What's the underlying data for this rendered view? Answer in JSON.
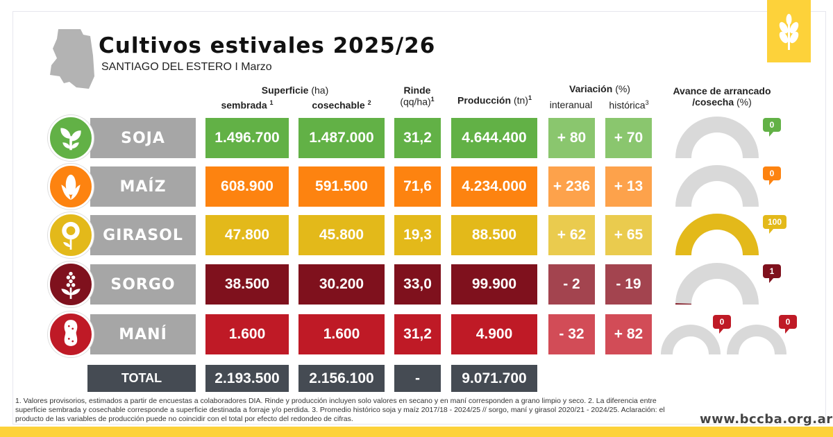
{
  "header": {
    "title": "Cultivos estivales 2025/26",
    "subtitle": "SANTIAGO DEL ESTERO I Marzo"
  },
  "columns": {
    "superficie": "Superficie",
    "superficie_unit": "(ha)",
    "sembrada": "sembrada",
    "sembrada_sup": "1",
    "cosechable": "cosechable",
    "cosechable_sup": "2",
    "rinde": "Rinde",
    "rinde_unit": "(qq/ha)",
    "rinde_sup": "1",
    "produccion": "Producción",
    "produccion_unit": "(tn)",
    "produccion_sup": "1",
    "variacion": "Variación",
    "variacion_unit": "(%)",
    "interanual": "interanual",
    "historica": "histórica",
    "historica_sup": "3",
    "avance": "Avance de arrancado",
    "avance2": "/cosecha",
    "avance_unit": "(%)"
  },
  "crops": [
    {
      "name": "SOJA",
      "icon": "sprout-icon",
      "sembrada": "1.496.700",
      "cosechable": "1.487.000",
      "rinde": "31,2",
      "produccion": "4.644.400",
      "interanual": "+ 80",
      "historica": "+ 70",
      "avance": [
        0
      ],
      "avance_labels": [
        "0"
      ],
      "color": "#62b146",
      "light": "#8ac66e"
    },
    {
      "name": "MAÍZ",
      "icon": "corn-icon",
      "sembrada": "608.900",
      "cosechable": "591.500",
      "rinde": "71,6",
      "produccion": "4.234.000",
      "interanual": "+ 236",
      "historica": "+ 13",
      "avance": [
        0
      ],
      "avance_labels": [
        "0"
      ],
      "color": "#fd8310",
      "light": "#fda24b"
    },
    {
      "name": "GIRASOL",
      "icon": "sunflower-icon",
      "sembrada": "47.800",
      "cosechable": "45.800",
      "rinde": "19,3",
      "produccion": "88.500",
      "interanual": "+ 62",
      "historica": "+ 65",
      "avance": [
        100
      ],
      "avance_labels": [
        "100"
      ],
      "color": "#e3b91a",
      "light": "#eacb4e"
    },
    {
      "name": "SORGO",
      "icon": "sorghum-icon",
      "sembrada": "38.500",
      "cosechable": "30.200",
      "rinde": "33,0",
      "produccion": "99.900",
      "interanual": "- 2",
      "historica": "- 19",
      "avance": [
        1
      ],
      "avance_labels": [
        "1"
      ],
      "color": "#7f111d",
      "light": "#a3444f"
    },
    {
      "name": "MANÍ",
      "icon": "peanut-icon",
      "sembrada": "1.600",
      "cosechable": "1.600",
      "rinde": "31,2",
      "produccion": "4.900",
      "interanual": "- 32",
      "historica": "+ 82",
      "avance": [
        0,
        0
      ],
      "avance_labels": [
        "0",
        "0"
      ],
      "color": "#bf1a26",
      "light": "#d24c57"
    }
  ],
  "total": {
    "label": "TOTAL",
    "sembrada": "2.193.500",
    "cosechable": "2.156.100",
    "rinde": "-",
    "produccion": "9.071.700",
    "color": "#454b53"
  },
  "footnote": "1. Valores provisorios, estimados a partir de encuestas a colaboradores DIA. Rinde y producción incluyen solo valores en secano y en maní corresponden a grano limpio y seco. 2. La diferencia entre superficie sembrada y cosechable corresponde a superficie destinada a forraje y/o perdida. 3.  Promedio histórico soja y maíz 2017/18 - 2024/25 // sorgo, maní y girasol 2020/21 - 2024/25. Aclaración: el producto de las variables de producción puede no coincidir con el total por efecto del redondeo de cifras.",
  "website": "www.bccba.org.ar",
  "colors": {
    "brand_yellow": "#fdd23a",
    "label_grey": "#a6a6a6",
    "gauge_track": "#d9d9d9"
  }
}
